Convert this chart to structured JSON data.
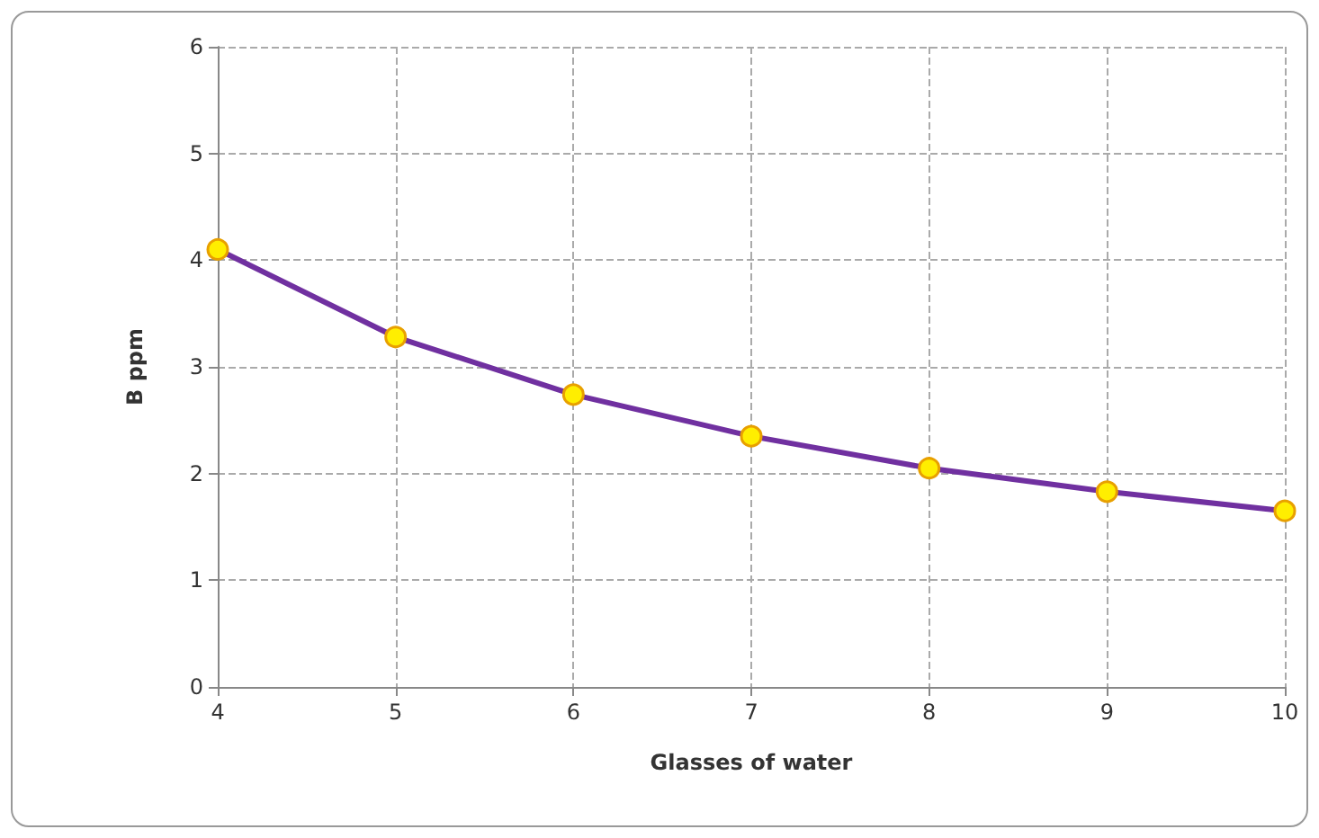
{
  "chart_data": {
    "type": "line",
    "xlabel": "Glasses of water",
    "ylabel": "B ppm",
    "x": [
      4,
      5,
      6,
      7,
      8,
      9,
      10
    ],
    "series": [
      {
        "color": "#7030a0",
        "values": [
          4.1,
          3.28,
          2.74,
          2.35,
          2.05,
          1.83,
          1.65
        ]
      }
    ],
    "xlim": [
      4,
      10
    ],
    "xticks": [
      4,
      5,
      6,
      7,
      8,
      9,
      10
    ],
    "ylim": [
      0,
      6
    ],
    "yticks": [
      0,
      1,
      2,
      3,
      4,
      5,
      6
    ],
    "grid": true,
    "marker": "circle",
    "line_style": "solid"
  }
}
